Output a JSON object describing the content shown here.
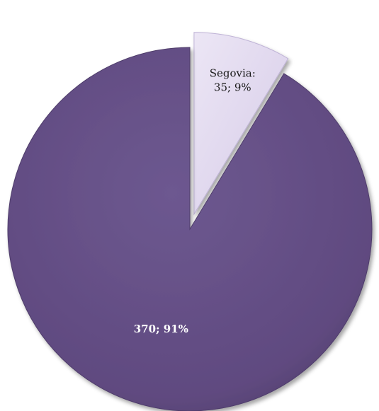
{
  "chart_data": {
    "type": "pie",
    "title": "",
    "slices": [
      {
        "name": "Segovia",
        "value": 35,
        "percent": 9,
        "label_line1": "Segovia:",
        "label_line2": "35; 9%",
        "color": "#e0d8ef",
        "exploded": true
      },
      {
        "name": "",
        "value": 370,
        "percent": 91,
        "label": "370; 91%",
        "color": "#654f86",
        "exploded": false
      }
    ]
  }
}
